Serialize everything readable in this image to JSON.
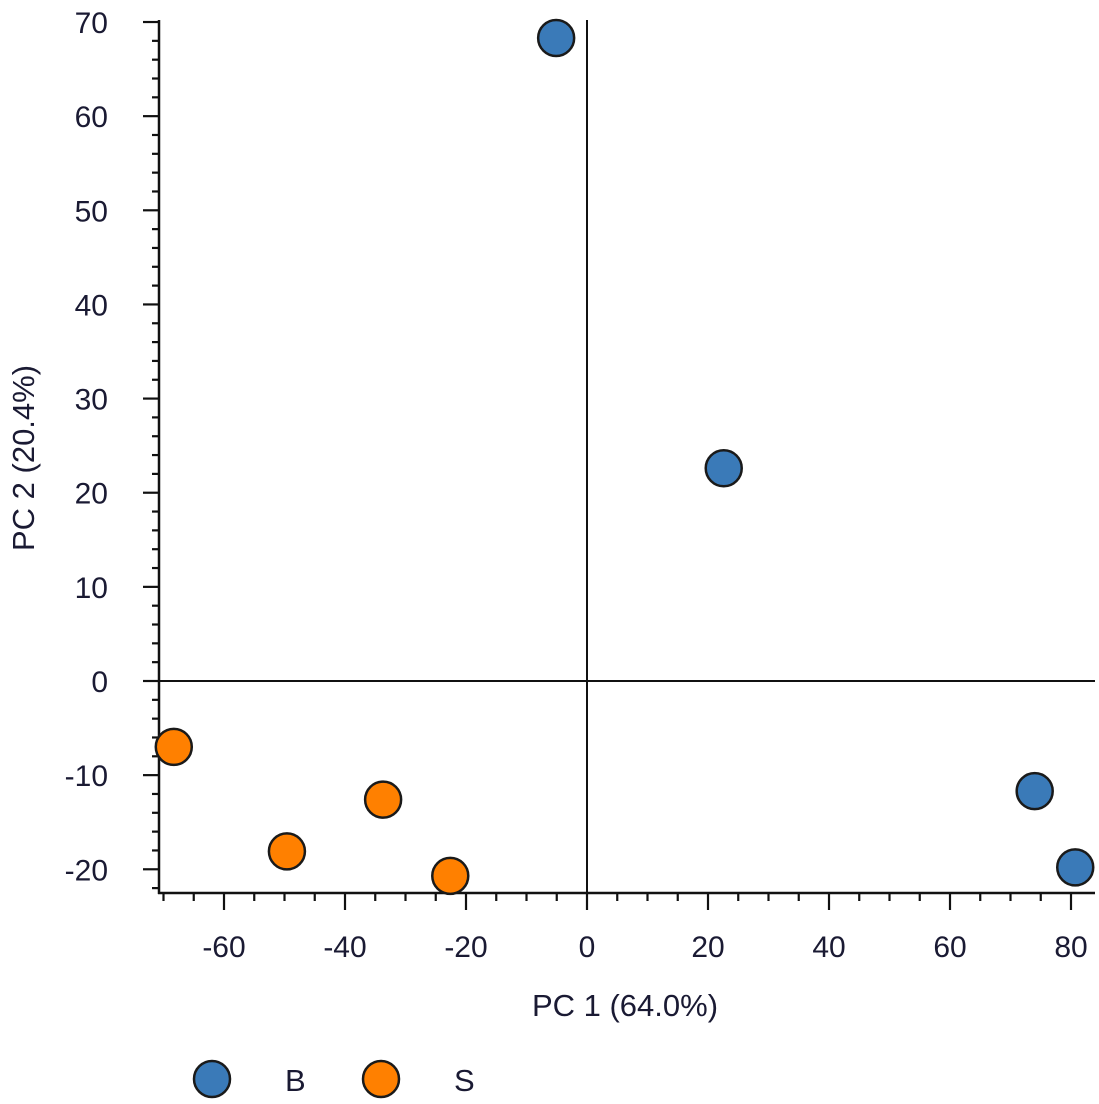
{
  "chart_data": {
    "type": "scatter",
    "title": "",
    "xlabel": "PC 1 (64.0%)",
    "ylabel": "PC 2 (20.4%)",
    "xlim": [
      -70.7,
      84
    ],
    "ylim": [
      -22.5,
      70
    ],
    "x_ticks": [
      -60,
      -40,
      -20,
      0,
      20,
      40,
      60,
      80
    ],
    "y_ticks": [
      -20,
      -10,
      0,
      10,
      20,
      30,
      40,
      50,
      60,
      70
    ],
    "x_minor_step": 5,
    "y_minor_step": 2,
    "grid": false,
    "zero_lines": true,
    "legend_position": "bottom-left",
    "series": [
      {
        "name": "B",
        "color": "#3a7ab8",
        "points": [
          {
            "x": -5.1,
            "y": 68.3
          },
          {
            "x": 22.6,
            "y": 22.6
          },
          {
            "x": 74.0,
            "y": -11.7
          },
          {
            "x": 80.7,
            "y": -19.8
          }
        ]
      },
      {
        "name": "S",
        "color": "#ff8000",
        "points": [
          {
            "x": -68.3,
            "y": -7.0
          },
          {
            "x": -49.6,
            "y": -18.1
          },
          {
            "x": -33.7,
            "y": -12.6
          },
          {
            "x": -22.6,
            "y": -20.7
          }
        ]
      }
    ]
  },
  "legend": {
    "items": [
      {
        "label": "B",
        "color": "#3a7ab8"
      },
      {
        "label": "S",
        "color": "#ff8000"
      }
    ]
  }
}
